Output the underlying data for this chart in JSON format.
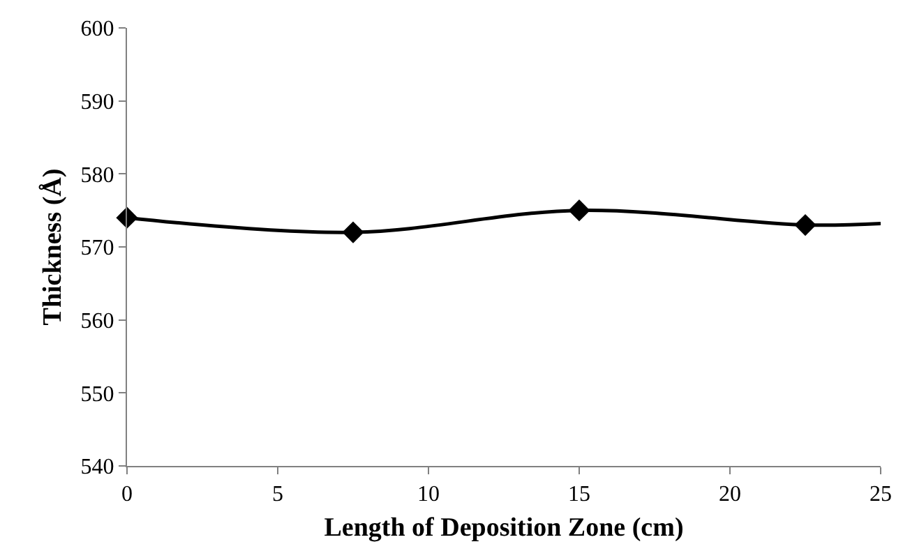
{
  "chart_data": {
    "type": "line",
    "xlabel": "Length of Deposition Zone (cm)",
    "ylabel": "Thickness (Å)",
    "xlim": [
      0,
      25
    ],
    "xticks": [
      0,
      5,
      10,
      15,
      20,
      25
    ],
    "ylim": [
      540,
      600
    ],
    "yticks": [
      540,
      550,
      560,
      570,
      580,
      590,
      600
    ],
    "series": [
      {
        "color": "#000000",
        "marker": "none",
        "x": [
          0,
          7.5,
          15,
          22.5,
          25
        ],
        "values": [
          574,
          572,
          575,
          573,
          573.2
        ]
      },
      {
        "type": "scatter",
        "color": "#000000",
        "marker": "diamond",
        "x": [
          0,
          7.5,
          15,
          22.5
        ],
        "values": [
          574,
          572,
          575,
          573
        ]
      }
    ]
  }
}
